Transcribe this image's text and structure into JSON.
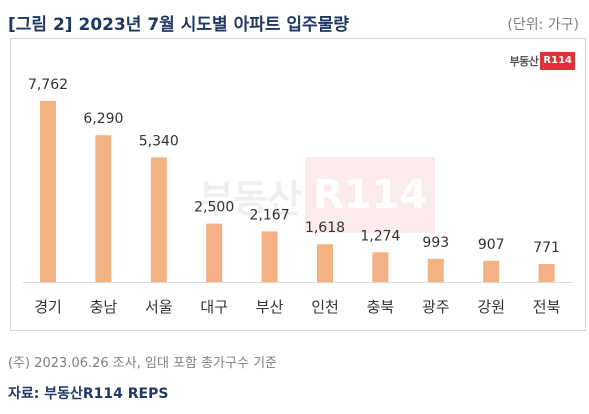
{
  "header": {
    "title": "[그림 2] 2023년 7월 시도별 아파트 입주물량",
    "unit": "(단위: 가구)"
  },
  "logo": {
    "text": "부동산",
    "badge": "R114"
  },
  "footer": {
    "note": "(주) 2023.06.26 조사, 임대 포함 총가구수 기준",
    "source": "자료: 부동산R114 REPS"
  },
  "colors": {
    "bar": "#f4b183",
    "title": "#1f3864",
    "logo_red": "#d9333c"
  },
  "chart_data": {
    "type": "bar",
    "categories": [
      "경기",
      "충남",
      "서울",
      "대구",
      "부산",
      "인천",
      "충북",
      "광주",
      "강원",
      "전북"
    ],
    "values": [
      7762,
      6290,
      5340,
      2500,
      2167,
      1618,
      1274,
      993,
      907,
      771
    ],
    "value_labels": [
      "7,762",
      "6,290",
      "5,340",
      "2,500",
      "2,167",
      "1,618",
      "1,274",
      "993",
      "907",
      "771"
    ],
    "ylim": [
      0,
      9000
    ],
    "grid": false,
    "legend": "none"
  }
}
